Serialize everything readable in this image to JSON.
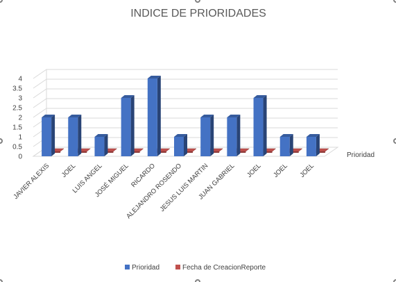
{
  "chart_data": {
    "type": "bar",
    "title": "INDICE DE PRIORIDADES",
    "categories": [
      "JAVIER ALEXIS",
      "JOEL",
      "LUIS ANGEL",
      "JOSÉ MIGUEL",
      "RICARDO",
      "ALEJANDRO ROSENDO",
      "JESUS LUIS MARTIN",
      "JUAN GABRIEL",
      "JOEL",
      "JOEL",
      "JOEL"
    ],
    "series": [
      {
        "name": "Prioridad",
        "color": "#4472c4",
        "values": [
          2,
          2,
          1,
          3,
          4,
          1,
          2,
          2,
          3,
          1,
          1
        ]
      },
      {
        "name": "Fecha de CreacionReporte",
        "color": "#c0504d",
        "values": [
          0,
          0,
          0,
          0,
          0,
          0,
          0,
          0,
          0,
          0,
          0
        ]
      }
    ],
    "y_ticks": [
      "0",
      "0.5",
      "1",
      "1.5",
      "2",
      "2.5",
      "3",
      "3.5",
      "4"
    ],
    "ylim": [
      0,
      4
    ],
    "depth_axis_label": "Prioridad",
    "grid": true,
    "legend_position": "bottom",
    "view": "3d-column"
  }
}
